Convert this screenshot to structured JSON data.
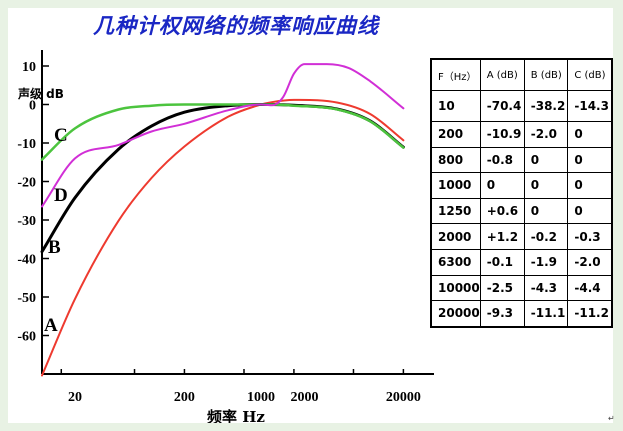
{
  "title": "几种计权网络的频率响应曲线",
  "corner_mark": "↵",
  "chart_data": {
    "type": "line",
    "ylabel": "声级 dB",
    "xlabel": "频率 Hz",
    "x_scale": "log",
    "ylim": [
      -70,
      10
    ],
    "y_ticks": [
      "10",
      "0",
      "-10",
      "-20",
      "-30",
      "-40",
      "-50",
      "-60"
    ],
    "x_ticks": [
      "20",
      "200",
      "1000",
      "2000",
      "20000"
    ],
    "series": [
      {
        "name": "A",
        "color": "#ee3a2f",
        "x": [
          10,
          20,
          50,
          100,
          200,
          500,
          1000,
          1250,
          2000,
          5000,
          10000,
          20000
        ],
        "y": [
          -70.4,
          -50.5,
          -30.2,
          -19.1,
          -10.9,
          -3.2,
          0,
          0.6,
          1.2,
          0.5,
          -2.5,
          -9.3
        ]
      },
      {
        "name": "B",
        "color": "#000000",
        "x": [
          10,
          20,
          50,
          100,
          200,
          500,
          1000,
          1250,
          2000,
          5000,
          10000,
          20000
        ],
        "y": [
          -38.2,
          -24.2,
          -11.6,
          -5.6,
          -2.0,
          -0.3,
          0,
          0,
          -0.2,
          -1.2,
          -4.3,
          -11.1
        ]
      },
      {
        "name": "C",
        "color": "#4cc43e",
        "x": [
          10,
          20,
          50,
          100,
          200,
          500,
          1000,
          1250,
          2000,
          5000,
          10000,
          20000
        ],
        "y": [
          -14.3,
          -6.2,
          -1.3,
          -0.3,
          0,
          0,
          0,
          0,
          -0.3,
          -1.3,
          -4.4,
          -11.2
        ]
      },
      {
        "name": "D",
        "color": "#d12fd6",
        "x": [
          10,
          20,
          50,
          100,
          200,
          500,
          1000,
          1250,
          1600,
          2000,
          2500,
          4000,
          6300,
          10000,
          20000
        ],
        "y": [
          -26.5,
          -14,
          -10.5,
          -7,
          -5,
          -1.5,
          0,
          -0.2,
          2,
          8,
          10.5,
          10.5,
          9.5,
          6,
          -1
        ]
      }
    ],
    "table": {
      "headers": [
        "F（Hz）",
        "A (dB)",
        "B (dB)",
        "C (dB)"
      ],
      "rows": [
        [
          "10",
          "-70.4",
          "-38.2",
          "-14.3"
        ],
        [
          "200",
          "-10.9",
          "-2.0",
          "0"
        ],
        [
          "800",
          "-0.8",
          "0",
          "0"
        ],
        [
          "1000",
          "0",
          "0",
          "0"
        ],
        [
          "1250",
          "+0.6",
          "0",
          "0"
        ],
        [
          "2000",
          "+1.2",
          "-0.2",
          "-0.3"
        ],
        [
          "6300",
          "-0.1",
          "-1.9",
          "-2.0"
        ],
        [
          "10000",
          "-2.5",
          "-4.3",
          "-4.4"
        ],
        [
          "20000",
          "-9.3",
          "-11.1",
          "-11.2"
        ]
      ]
    }
  }
}
